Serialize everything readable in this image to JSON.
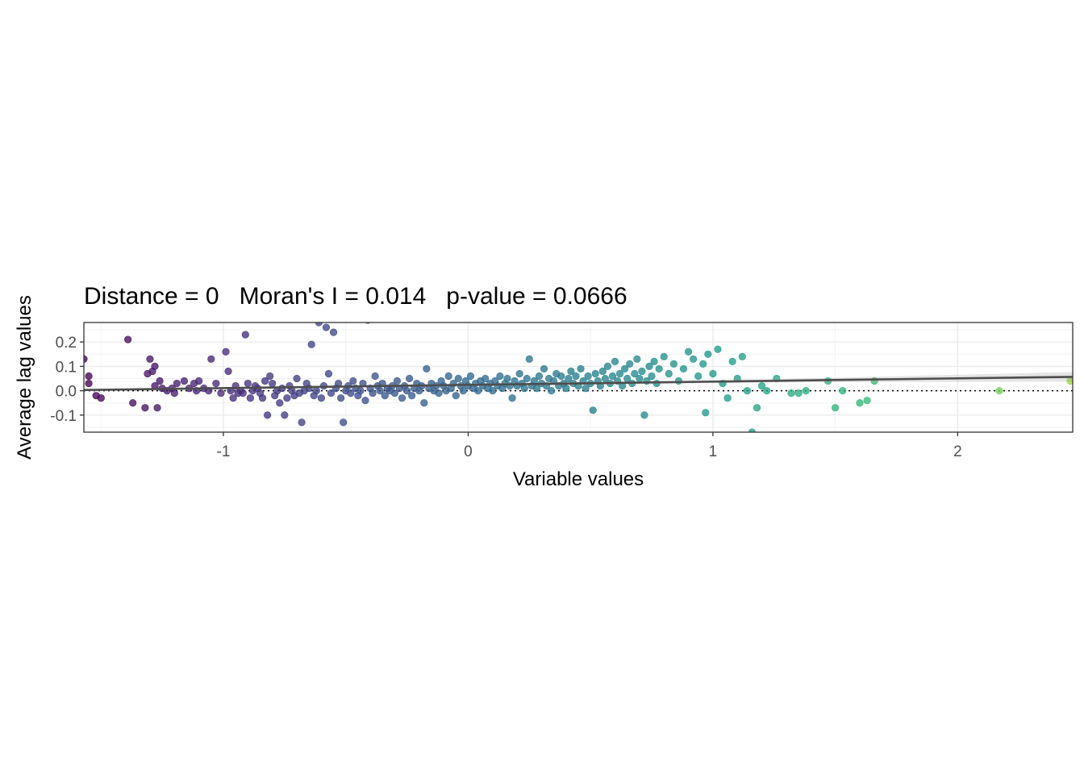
{
  "chart_data": {
    "type": "scatter",
    "title": "Distance = 0   Moran's I = 0.014   p-value = 0.0666",
    "xlabel": "Variable values",
    "ylabel": "Average lag values",
    "xlim": [
      -1.57,
      2.47
    ],
    "ylim": [
      -0.17,
      0.28
    ],
    "x_ticks": [
      -1,
      0,
      1,
      2
    ],
    "x_tick_labels": [
      "-1",
      "0",
      "1",
      "2"
    ],
    "y_ticks": [
      -0.1,
      0.0,
      0.1,
      0.2
    ],
    "y_tick_labels": [
      "-0.1",
      "0.0",
      "0.1",
      "0.2"
    ],
    "grid": true,
    "color_scale": "viridis (by variable value)",
    "reference_line": {
      "y": 0,
      "style": "dotted"
    },
    "fit_line": {
      "x": [
        -1.57,
        2.47
      ],
      "y": [
        0.003,
        0.057
      ],
      "color": "#4d4d4d"
    },
    "points": [
      [
        -1.57,
        0.13
      ],
      [
        -1.55,
        0.06
      ],
      [
        -1.55,
        0.03
      ],
      [
        -1.52,
        -0.02
      ],
      [
        -1.5,
        -0.03
      ],
      [
        -1.39,
        0.21
      ],
      [
        -1.37,
        -0.05
      ],
      [
        -1.32,
        -0.07
      ],
      [
        -1.31,
        0.07
      ],
      [
        -1.3,
        0.13
      ],
      [
        -1.29,
        0.08
      ],
      [
        -1.28,
        0.1
      ],
      [
        -1.28,
        0.02
      ],
      [
        -1.27,
        -0.07
      ],
      [
        -1.26,
        0.04
      ],
      [
        -1.25,
        0.01
      ],
      [
        -1.23,
        0.0
      ],
      [
        -1.21,
        0.01
      ],
      [
        -1.2,
        -0.01
      ],
      [
        -1.19,
        0.03
      ],
      [
        -1.16,
        0.04
      ],
      [
        -1.14,
        0.01
      ],
      [
        -1.12,
        0.03
      ],
      [
        -1.11,
        0.0
      ],
      [
        -1.1,
        0.04
      ],
      [
        -1.08,
        0.01
      ],
      [
        -1.06,
        0.0
      ],
      [
        -1.05,
        0.13
      ],
      [
        -1.03,
        0.03
      ],
      [
        -1.01,
        -0.01
      ],
      [
        -0.99,
        0.16
      ],
      [
        -0.98,
        0.08
      ],
      [
        -0.97,
        0.0
      ],
      [
        -0.96,
        -0.03
      ],
      [
        -0.95,
        0.02
      ],
      [
        -0.94,
        -0.01
      ],
      [
        -0.93,
        0.0
      ],
      [
        -0.92,
        -0.01
      ],
      [
        -0.91,
        0.23
      ],
      [
        -0.9,
        0.03
      ],
      [
        -0.89,
        -0.03
      ],
      [
        -0.88,
        0.0
      ],
      [
        -0.87,
        0.02
      ],
      [
        -0.86,
        0.01
      ],
      [
        -0.85,
        -0.01
      ],
      [
        -0.84,
        -0.03
      ],
      [
        -0.83,
        0.04
      ],
      [
        -0.82,
        -0.1
      ],
      [
        -0.81,
        0.06
      ],
      [
        -0.8,
        0.03
      ],
      [
        -0.79,
        -0.02
      ],
      [
        -0.78,
        0.0
      ],
      [
        -0.77,
        -0.05
      ],
      [
        -0.76,
        0.01
      ],
      [
        -0.75,
        -0.1
      ],
      [
        -0.74,
        -0.03
      ],
      [
        -0.73,
        0.02
      ],
      [
        -0.72,
        0.0
      ],
      [
        -0.71,
        -0.02
      ],
      [
        -0.7,
        0.05
      ],
      [
        -0.69,
        -0.01
      ],
      [
        -0.68,
        -0.13
      ],
      [
        -0.67,
        0.0
      ],
      [
        -0.66,
        0.03
      ],
      [
        -0.65,
        0.01
      ],
      [
        -0.64,
        0.19
      ],
      [
        -0.63,
        -0.02
      ],
      [
        -0.62,
        0.0
      ],
      [
        -0.61,
        0.28
      ],
      [
        -0.6,
        -0.03
      ],
      [
        -0.59,
        0.02
      ],
      [
        -0.58,
        0.26
      ],
      [
        -0.57,
        0.07
      ],
      [
        -0.56,
        -0.01
      ],
      [
        -0.55,
        0.24
      ],
      [
        -0.54,
        0.01
      ],
      [
        -0.53,
        0.03
      ],
      [
        -0.52,
        -0.03
      ],
      [
        -0.51,
        -0.13
      ],
      [
        -0.5,
        0.0
      ],
      [
        -0.49,
        0.02
      ],
      [
        -0.48,
        -0.01
      ],
      [
        -0.47,
        0.04
      ],
      [
        -0.46,
        0.01
      ],
      [
        -0.45,
        -0.02
      ],
      [
        -0.44,
        0.0
      ],
      [
        -0.43,
        0.03
      ],
      [
        -0.42,
        -0.04
      ],
      [
        -0.41,
        0.29
      ],
      [
        -0.4,
        0.01
      ],
      [
        -0.39,
        -0.01
      ],
      [
        -0.38,
        0.06
      ],
      [
        -0.37,
        0.02
      ],
      [
        -0.36,
        0.0
      ],
      [
        -0.35,
        0.03
      ],
      [
        -0.34,
        -0.02
      ],
      [
        -0.33,
        0.01
      ],
      [
        -0.32,
        0.0
      ],
      [
        -0.31,
        0.02
      ],
      [
        -0.3,
        -0.01
      ],
      [
        -0.29,
        0.04
      ],
      [
        -0.28,
        0.01
      ],
      [
        -0.27,
        -0.03
      ],
      [
        -0.26,
        0.02
      ],
      [
        -0.25,
        0.0
      ],
      [
        -0.24,
        0.05
      ],
      [
        -0.23,
        -0.02
      ],
      [
        -0.22,
        0.01
      ],
      [
        -0.21,
        0.03
      ],
      [
        -0.2,
        0.0
      ],
      [
        -0.19,
        0.02
      ],
      [
        -0.18,
        -0.05
      ],
      [
        -0.17,
        0.09
      ],
      [
        -0.16,
        0.01
      ],
      [
        -0.15,
        0.03
      ],
      [
        -0.14,
        0.0
      ],
      [
        -0.13,
        0.02
      ],
      [
        -0.12,
        -0.01
      ],
      [
        -0.11,
        0.04
      ],
      [
        -0.1,
        0.02
      ],
      [
        -0.09,
        0.0
      ],
      [
        -0.08,
        0.06
      ],
      [
        -0.07,
        0.01
      ],
      [
        -0.06,
        0.03
      ],
      [
        -0.05,
        -0.02
      ],
      [
        -0.04,
        0.05
      ],
      [
        -0.03,
        0.02
      ],
      [
        -0.02,
        0.0
      ],
      [
        -0.01,
        0.04
      ],
      [
        0.0,
        0.02
      ],
      [
        0.01,
        0.06
      ],
      [
        0.02,
        0.01
      ],
      [
        0.03,
        0.03
      ],
      [
        0.04,
        0.0
      ],
      [
        0.05,
        0.04
      ],
      [
        0.06,
        0.02
      ],
      [
        0.07,
        0.05
      ],
      [
        0.08,
        0.01
      ],
      [
        0.09,
        0.03
      ],
      [
        0.1,
        0.0
      ],
      [
        0.11,
        0.04
      ],
      [
        0.12,
        0.02
      ],
      [
        0.13,
        0.06
      ],
      [
        0.14,
        0.01
      ],
      [
        0.15,
        0.03
      ],
      [
        0.16,
        0.05
      ],
      [
        0.17,
        0.02
      ],
      [
        0.18,
        -0.03
      ],
      [
        0.19,
        0.04
      ],
      [
        0.2,
        0.02
      ],
      [
        0.21,
        0.07
      ],
      [
        0.22,
        0.03
      ],
      [
        0.23,
        0.01
      ],
      [
        0.24,
        0.05
      ],
      [
        0.25,
        0.13
      ],
      [
        0.26,
        0.02
      ],
      [
        0.27,
        0.04
      ],
      [
        0.28,
        0.01
      ],
      [
        0.29,
        0.06
      ],
      [
        0.3,
        0.03
      ],
      [
        0.31,
        0.09
      ],
      [
        0.32,
        0.02
      ],
      [
        0.33,
        0.05
      ],
      [
        0.34,
        0.0
      ],
      [
        0.35,
        0.04
      ],
      [
        0.36,
        0.07
      ],
      [
        0.37,
        0.02
      ],
      [
        0.38,
        0.06
      ],
      [
        0.39,
        0.03
      ],
      [
        0.4,
        0.01
      ],
      [
        0.41,
        0.05
      ],
      [
        0.42,
        0.08
      ],
      [
        0.43,
        0.03
      ],
      [
        0.44,
        0.06
      ],
      [
        0.45,
        0.02
      ],
      [
        0.46,
        0.09
      ],
      [
        0.47,
        0.04
      ],
      [
        0.48,
        0.01
      ],
      [
        0.49,
        0.06
      ],
      [
        0.5,
        0.03
      ],
      [
        0.51,
        -0.08
      ],
      [
        0.52,
        0.07
      ],
      [
        0.53,
        0.04
      ],
      [
        0.54,
        0.02
      ],
      [
        0.55,
        0.08
      ],
      [
        0.56,
        0.05
      ],
      [
        0.57,
        0.1
      ],
      [
        0.58,
        0.03
      ],
      [
        0.59,
        0.06
      ],
      [
        0.6,
        0.12
      ],
      [
        0.61,
        0.04
      ],
      [
        0.62,
        0.07
      ],
      [
        0.63,
        0.02
      ],
      [
        0.64,
        0.09
      ],
      [
        0.65,
        0.05
      ],
      [
        0.66,
        0.11
      ],
      [
        0.67,
        0.03
      ],
      [
        0.68,
        0.07
      ],
      [
        0.69,
        0.13
      ],
      [
        0.7,
        0.05
      ],
      [
        0.71,
        0.08
      ],
      [
        0.72,
        -0.1
      ],
      [
        0.73,
        0.04
      ],
      [
        0.74,
        0.1
      ],
      [
        0.75,
        0.06
      ],
      [
        0.76,
        0.12
      ],
      [
        0.77,
        0.03
      ],
      [
        0.78,
        0.09
      ],
      [
        0.8,
        0.14
      ],
      [
        0.82,
        0.07
      ],
      [
        0.84,
        0.11
      ],
      [
        0.86,
        0.04
      ],
      [
        0.88,
        0.09
      ],
      [
        0.9,
        0.16
      ],
      [
        0.92,
        0.13
      ],
      [
        0.94,
        0.06
      ],
      [
        0.96,
        0.11
      ],
      [
        0.97,
        -0.09
      ],
      [
        0.98,
        0.15
      ],
      [
        1.0,
        0.07
      ],
      [
        1.02,
        0.17
      ],
      [
        1.04,
        0.03
      ],
      [
        1.06,
        -0.03
      ],
      [
        1.08,
        0.12
      ],
      [
        1.1,
        0.05
      ],
      [
        1.12,
        0.14
      ],
      [
        1.14,
        0.0
      ],
      [
        1.16,
        -0.17
      ],
      [
        1.18,
        -0.07
      ],
      [
        1.2,
        0.02
      ],
      [
        1.22,
        0.0
      ],
      [
        1.26,
        0.05
      ],
      [
        1.32,
        -0.01
      ],
      [
        1.35,
        -0.01
      ],
      [
        1.38,
        0.0
      ],
      [
        1.47,
        0.04
      ],
      [
        1.5,
        -0.07
      ],
      [
        1.53,
        0.0
      ],
      [
        1.6,
        -0.05
      ],
      [
        1.63,
        -0.04
      ],
      [
        1.66,
        0.04
      ],
      [
        2.17,
        0.0
      ],
      [
        2.46,
        0.04
      ]
    ]
  }
}
